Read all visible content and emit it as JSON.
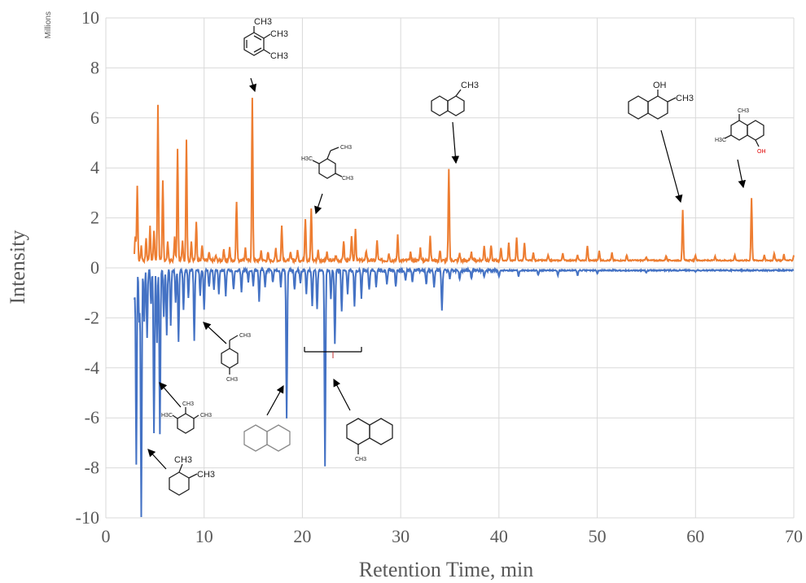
{
  "chart_data": {
    "type": "line",
    "xlabel": "Retention Time, min",
    "ylabel": "Intensity",
    "units_label": "Millions",
    "xlim": [
      0,
      70
    ],
    "ylim": [
      -10,
      10
    ],
    "x_ticks": [
      "0",
      "10",
      "20",
      "30",
      "40",
      "50",
      "60",
      "70"
    ],
    "y_ticks": [
      "10",
      "8",
      "6",
      "4",
      "2",
      "0",
      "-2",
      "-4",
      "-6",
      "-8",
      "-10"
    ],
    "grid": true,
    "colors": {
      "orange": "#ED7D31",
      "blue": "#4472C4",
      "grid": "#d9d9d9"
    },
    "series": [
      {
        "color": "#ED7D31",
        "baseline": 0.3,
        "peaks": [
          [
            3.0,
            1.3
          ],
          [
            3.2,
            3.3
          ],
          [
            3.6,
            0.9
          ],
          [
            4.1,
            1.2
          ],
          [
            4.5,
            1.7
          ],
          [
            4.9,
            1.5
          ],
          [
            5.3,
            6.5
          ],
          [
            5.8,
            3.5
          ],
          [
            6.3,
            1.0
          ],
          [
            7.0,
            1.2
          ],
          [
            7.3,
            4.8
          ],
          [
            7.8,
            1.1
          ],
          [
            8.2,
            5.1
          ],
          [
            8.7,
            1.0
          ],
          [
            9.2,
            1.9
          ],
          [
            9.8,
            0.9
          ],
          [
            10.5,
            0.6
          ],
          [
            11.2,
            0.5
          ],
          [
            12.0,
            0.7
          ],
          [
            12.6,
            0.8
          ],
          [
            13.3,
            2.7
          ],
          [
            14.2,
            0.8
          ],
          [
            14.9,
            6.8
          ],
          [
            15.8,
            0.7
          ],
          [
            16.5,
            0.6
          ],
          [
            17.3,
            0.8
          ],
          [
            17.9,
            1.7
          ],
          [
            18.8,
            0.6
          ],
          [
            19.5,
            0.7
          ],
          [
            20.3,
            2.0
          ],
          [
            20.9,
            2.4
          ],
          [
            21.6,
            0.7
          ],
          [
            22.5,
            0.6
          ],
          [
            23.4,
            0.5
          ],
          [
            24.2,
            1.1
          ],
          [
            25.0,
            1.3
          ],
          [
            25.4,
            1.6
          ],
          [
            26.5,
            0.7
          ],
          [
            27.6,
            1.1
          ],
          [
            28.8,
            0.6
          ],
          [
            29.7,
            1.3
          ],
          [
            31.0,
            0.6
          ],
          [
            32.0,
            0.8
          ],
          [
            33.0,
            1.3
          ],
          [
            34.0,
            0.7
          ],
          [
            34.9,
            4.0
          ],
          [
            36.0,
            0.6
          ],
          [
            37.2,
            0.6
          ],
          [
            38.5,
            0.9
          ],
          [
            39.2,
            0.9
          ],
          [
            40.2,
            0.8
          ],
          [
            41.0,
            1.0
          ],
          [
            41.8,
            1.2
          ],
          [
            42.6,
            1.0
          ],
          [
            43.5,
            0.6
          ],
          [
            45.0,
            0.5
          ],
          [
            46.5,
            0.6
          ],
          [
            48.0,
            0.5
          ],
          [
            49.0,
            0.9
          ],
          [
            50.2,
            0.7
          ],
          [
            51.5,
            0.6
          ],
          [
            53.0,
            0.5
          ],
          [
            55.0,
            0.45
          ],
          [
            57.0,
            0.5
          ],
          [
            58.7,
            2.3
          ],
          [
            60.0,
            0.5
          ],
          [
            62.0,
            0.45
          ],
          [
            64.0,
            0.5
          ],
          [
            65.7,
            2.8
          ],
          [
            67.0,
            0.5
          ],
          [
            68.0,
            0.6
          ],
          [
            69.0,
            0.55
          ],
          [
            70.0,
            0.5
          ]
        ]
      },
      {
        "color": "#4472C4",
        "baseline": -0.1,
        "peaks": [
          [
            2.9,
            -1.3
          ],
          [
            3.1,
            -7.9
          ],
          [
            3.4,
            -2.2
          ],
          [
            3.6,
            -10.0
          ],
          [
            3.9,
            -2.2
          ],
          [
            4.2,
            -2.8
          ],
          [
            4.6,
            -1.5
          ],
          [
            4.9,
            -6.6
          ],
          [
            5.2,
            -3.0
          ],
          [
            5.5,
            -6.7
          ],
          [
            5.9,
            -2.0
          ],
          [
            6.2,
            -2.7
          ],
          [
            6.6,
            -2.3
          ],
          [
            7.1,
            -1.4
          ],
          [
            7.4,
            -3.0
          ],
          [
            7.9,
            -1.7
          ],
          [
            8.4,
            -1.2
          ],
          [
            9.0,
            -2.9
          ],
          [
            9.6,
            -1.1
          ],
          [
            10.0,
            -1.7
          ],
          [
            10.5,
            -0.8
          ],
          [
            11.0,
            -0.9
          ],
          [
            11.5,
            -1.0
          ],
          [
            12.2,
            -1.1
          ],
          [
            13.0,
            -0.9
          ],
          [
            13.8,
            -1.0
          ],
          [
            14.5,
            -0.6
          ],
          [
            15.0,
            -0.7
          ],
          [
            15.6,
            -1.3
          ],
          [
            16.2,
            -0.8
          ],
          [
            17.0,
            -0.6
          ],
          [
            17.8,
            -0.8
          ],
          [
            18.4,
            -6.0
          ],
          [
            19.2,
            -0.9
          ],
          [
            19.8,
            -0.6
          ],
          [
            20.4,
            -1.0
          ],
          [
            21.0,
            -1.5
          ],
          [
            21.5,
            -1.7
          ],
          [
            22.3,
            -7.9
          ],
          [
            22.9,
            -1.2
          ],
          [
            23.3,
            -3.1
          ],
          [
            24.0,
            -1.8
          ],
          [
            24.6,
            -1.0
          ],
          [
            25.3,
            -1.5
          ],
          [
            26.0,
            -1.2
          ],
          [
            26.8,
            -0.9
          ],
          [
            27.5,
            -0.8
          ],
          [
            28.6,
            -0.7
          ],
          [
            29.5,
            -0.8
          ],
          [
            30.5,
            -0.5
          ],
          [
            31.2,
            -0.6
          ],
          [
            32.6,
            -0.7
          ],
          [
            33.4,
            -0.8
          ],
          [
            34.2,
            -1.7
          ],
          [
            35.0,
            -0.5
          ],
          [
            36.0,
            -0.5
          ],
          [
            37.2,
            -0.45
          ],
          [
            38.5,
            -0.4
          ],
          [
            40.0,
            -0.4
          ],
          [
            42.0,
            -0.35
          ],
          [
            44.0,
            -0.3
          ],
          [
            46.0,
            -0.3
          ],
          [
            48.0,
            -0.3
          ],
          [
            50.0,
            -0.25
          ],
          [
            55.0,
            -0.2
          ],
          [
            60.0,
            -0.15
          ],
          [
            65.0,
            -0.1
          ],
          [
            70.0,
            -0.08
          ]
        ]
      }
    ]
  },
  "structures": {
    "trimethylbenzene": {
      "labels": [
        "CH3",
        "CH3",
        "CH3"
      ]
    },
    "ethyl_dimethylbenzene": {
      "labels": [
        "CH3",
        "H3C",
        "CH3"
      ]
    },
    "methylnaphthalene": {
      "labels": [
        "CH3"
      ]
    },
    "methylnaphthol": {
      "labels": [
        "OH",
        "CH3"
      ]
    },
    "dimethylnaphthol": {
      "labels": [
        "CH3",
        "H3C",
        "OH"
      ]
    },
    "ethyl_methylcyclohexane": {
      "labels": [
        "CH3",
        "CH3"
      ]
    },
    "trimethylcyclohexane": {
      "labels": [
        "H3C",
        "CH3",
        "CH3"
      ]
    },
    "dimethylcyclohexane": {
      "labels": [
        "CH3",
        "CH3"
      ]
    },
    "methyldecalin": {
      "labels": [
        "CH3"
      ]
    }
  }
}
